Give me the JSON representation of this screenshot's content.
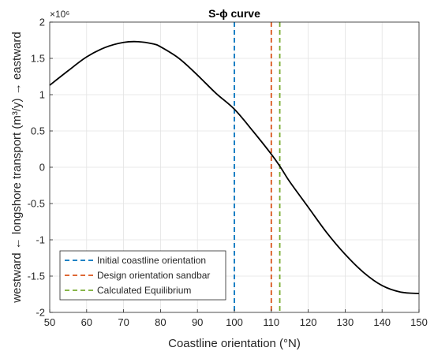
{
  "chart_data": {
    "type": "line",
    "title": "S-ϕ curve",
    "xlabel": "Coastline orientation (°N)",
    "ylabel": "westward ← longshore transport (m³/y) → eastward",
    "y_multiplier_label": "×10⁶",
    "xlim": [
      50,
      150
    ],
    "ylim": [
      -2,
      2
    ],
    "x_ticks": [
      50,
      60,
      70,
      80,
      90,
      100,
      110,
      120,
      130,
      140,
      150
    ],
    "y_ticks": [
      -2,
      -1.5,
      -1,
      -0.5,
      0,
      0.5,
      1,
      1.5,
      2
    ],
    "y_tick_labels": [
      "-2",
      "-1.5",
      "-1",
      "-0.5",
      "0",
      "0.5",
      "1",
      "1.5",
      "2"
    ],
    "grid": true,
    "legend_position": "bottom-left",
    "series": [
      {
        "x": [
          50,
          55,
          60,
          65,
          70,
          74,
          78,
          80,
          85,
          90,
          95,
          100,
          105,
          110,
          112.5,
          115,
          120,
          125,
          130,
          135,
          140,
          145,
          150
        ],
        "y": [
          1.13,
          1.33,
          1.52,
          1.65,
          1.72,
          1.73,
          1.7,
          1.66,
          1.5,
          1.27,
          1.02,
          0.8,
          0.5,
          0.18,
          0.0,
          -0.2,
          -0.55,
          -0.9,
          -1.2,
          -1.45,
          -1.63,
          -1.72,
          -1.74
        ],
        "color": "#000000"
      }
    ],
    "vlines": [
      {
        "name": "Initial coastline orientation",
        "x": 100,
        "color": "#0072BD"
      },
      {
        "name": "Design orientation sandbar",
        "x": 110,
        "color": "#D95319"
      },
      {
        "name": "Calculated Equilibrium",
        "x": 112.3,
        "color": "#77AC30"
      }
    ]
  }
}
